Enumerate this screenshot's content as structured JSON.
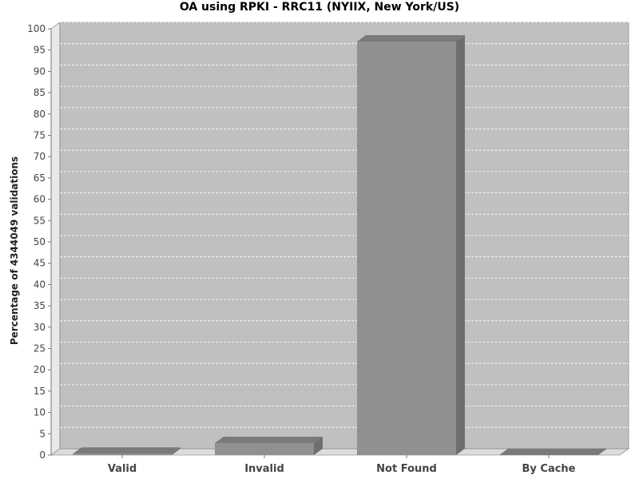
{
  "chart_data": {
    "type": "bar",
    "title": "OA using RPKI - RRC11 (NYIIX, New York/US)",
    "xlabel": "",
    "ylabel": "Percentage of 4344049 validations",
    "categories": [
      "Valid",
      "Invalid",
      "Not Found",
      "By Cache"
    ],
    "values": [
      0.3,
      2.8,
      97.0,
      0.0
    ],
    "ylim": [
      0,
      100
    ],
    "yticks": [
      0,
      5,
      10,
      15,
      20,
      25,
      30,
      35,
      40,
      45,
      50,
      55,
      60,
      65,
      70,
      75,
      80,
      85,
      90,
      95,
      100
    ],
    "grid": true,
    "legend": "none",
    "colors": {
      "plot_bg": "#c0c0c0",
      "grid": "#ffffff",
      "bar_front": "#909090",
      "bar_top": "#7a7a7a",
      "bar_side": "#6e6e6e",
      "wall_side": "#e8e8e8",
      "floor": "#dcdcdc"
    }
  }
}
